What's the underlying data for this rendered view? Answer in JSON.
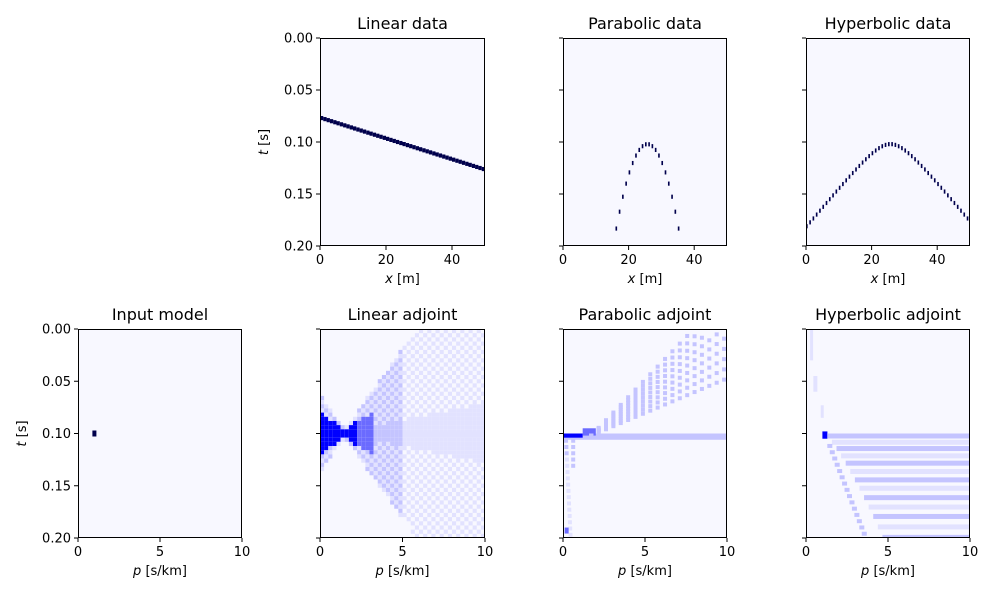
{
  "chart_data": [
    {
      "type": "heatmap",
      "title": "Linear data",
      "xlabel_sym": "x",
      "xlabel_unit": " [m]",
      "ylabel_sym": "t",
      "ylabel_unit": " [s]",
      "xlim": [
        0,
        50
      ],
      "ylim": [
        0.2,
        0.0
      ],
      "xticks": [
        "0",
        "20",
        "40"
      ],
      "xtick_values": [
        0,
        20,
        40
      ],
      "yticks": [
        "0.00",
        "0.05",
        "0.10",
        "0.15",
        "0.20"
      ],
      "ytick_values": [
        0.0,
        0.05,
        0.1,
        0.15,
        0.2
      ],
      "show_yticklabels": true,
      "colormap": "seismic",
      "curve": {
        "kind": "linear",
        "t0": 0.075,
        "slope_per_m": 0.001,
        "x_step": 1
      }
    },
    {
      "type": "heatmap",
      "title": "Parabolic data",
      "xlabel_sym": "x",
      "xlabel_unit": " [m]",
      "xlim": [
        0,
        50
      ],
      "ylim": [
        0.2,
        0.0
      ],
      "xticks": [
        "0",
        "20",
        "40"
      ],
      "xtick_values": [
        0,
        20,
        40
      ],
      "yticks": [
        "",
        "",
        "",
        "",
        ""
      ],
      "ytick_values": [
        0.0,
        0.05,
        0.1,
        0.15,
        0.2
      ],
      "show_yticklabels": false,
      "colormap": "seismic",
      "curve": {
        "kind": "parabolic",
        "t0": 0.1,
        "x0": 25.5,
        "coef": 0.0009,
        "x_step": 1
      }
    },
    {
      "type": "heatmap",
      "title": "Hyperbolic data",
      "xlabel_sym": "x",
      "xlabel_unit": " [m]",
      "xlim": [
        0,
        50
      ],
      "ylim": [
        0.2,
        0.0
      ],
      "xticks": [
        "0",
        "20",
        "40"
      ],
      "xtick_values": [
        0,
        20,
        40
      ],
      "yticks": [
        "",
        "",
        "",
        "",
        ""
      ],
      "ytick_values": [
        0.0,
        0.05,
        0.1,
        0.15,
        0.2
      ],
      "show_yticklabels": false,
      "colormap": "seismic",
      "curve": {
        "kind": "hyperbolic",
        "t0": 0.1,
        "x0": 25.5,
        "v": 70,
        "x_step": 1
      }
    },
    {
      "type": "heatmap",
      "title": "Input model",
      "xlabel_sym": "p",
      "xlabel_unit": " [s/km]",
      "ylabel_sym": "t",
      "ylabel_unit": " [s]",
      "xlim": [
        0,
        10
      ],
      "ylim": [
        0.2,
        0.0
      ],
      "xticks": [
        "0",
        "5",
        "10"
      ],
      "xtick_values": [
        0,
        5,
        10
      ],
      "yticks": [
        "0.00",
        "0.05",
        "0.10",
        "0.15",
        "0.20"
      ],
      "ytick_values": [
        0.0,
        0.05,
        0.1,
        0.15,
        0.2
      ],
      "show_yticklabels": true,
      "colormap": "seismic",
      "spike": {
        "p": 1.0,
        "t": 0.1
      }
    },
    {
      "type": "heatmap",
      "title": "Linear adjoint",
      "xlabel_sym": "p",
      "xlabel_unit": " [s/km]",
      "xlim": [
        0,
        10
      ],
      "ylim": [
        0.2,
        0.0
      ],
      "xticks": [
        "0",
        "5",
        "10"
      ],
      "xtick_values": [
        0,
        5,
        10
      ],
      "yticks": [
        "",
        "",
        "",
        "",
        ""
      ],
      "ytick_values": [
        0.0,
        0.05,
        0.1,
        0.15,
        0.2
      ],
      "show_yticklabels": false,
      "colormap": "seismic",
      "pattern": "linear-adjoint"
    },
    {
      "type": "heatmap",
      "title": "Parabolic adjoint",
      "xlabel_sym": "p",
      "xlabel_unit": " [s/km]",
      "xlim": [
        0,
        10
      ],
      "ylim": [
        0.2,
        0.0
      ],
      "xticks": [
        "0",
        "5",
        "10"
      ],
      "xtick_values": [
        0,
        5,
        10
      ],
      "yticks": [
        "",
        "",
        "",
        "",
        ""
      ],
      "ytick_values": [
        0.0,
        0.05,
        0.1,
        0.15,
        0.2
      ],
      "show_yticklabels": false,
      "colormap": "seismic",
      "pattern": "parabolic-adjoint"
    },
    {
      "type": "heatmap",
      "title": "Hyperbolic adjoint",
      "xlabel_sym": "p",
      "xlabel_unit": " [s/km]",
      "xlim": [
        0,
        10
      ],
      "ylim": [
        0.2,
        0.0
      ],
      "xticks": [
        "0",
        "5",
        "10"
      ],
      "xtick_values": [
        0,
        5,
        10
      ],
      "yticks": [
        "",
        "",
        "",
        "",
        ""
      ],
      "ytick_values": [
        0.0,
        0.05,
        0.1,
        0.15,
        0.2
      ],
      "show_yticklabels": false,
      "colormap": "seismic",
      "pattern": "hyperbolic-adjoint"
    }
  ],
  "colors": {
    "background": "#f8f8ff",
    "strong": "#00004c",
    "blue": "#0000ff",
    "mid_blue": "#6b6bff",
    "light_blue": "#c4c4ff",
    "faint_blue": "#e2e2ff"
  }
}
